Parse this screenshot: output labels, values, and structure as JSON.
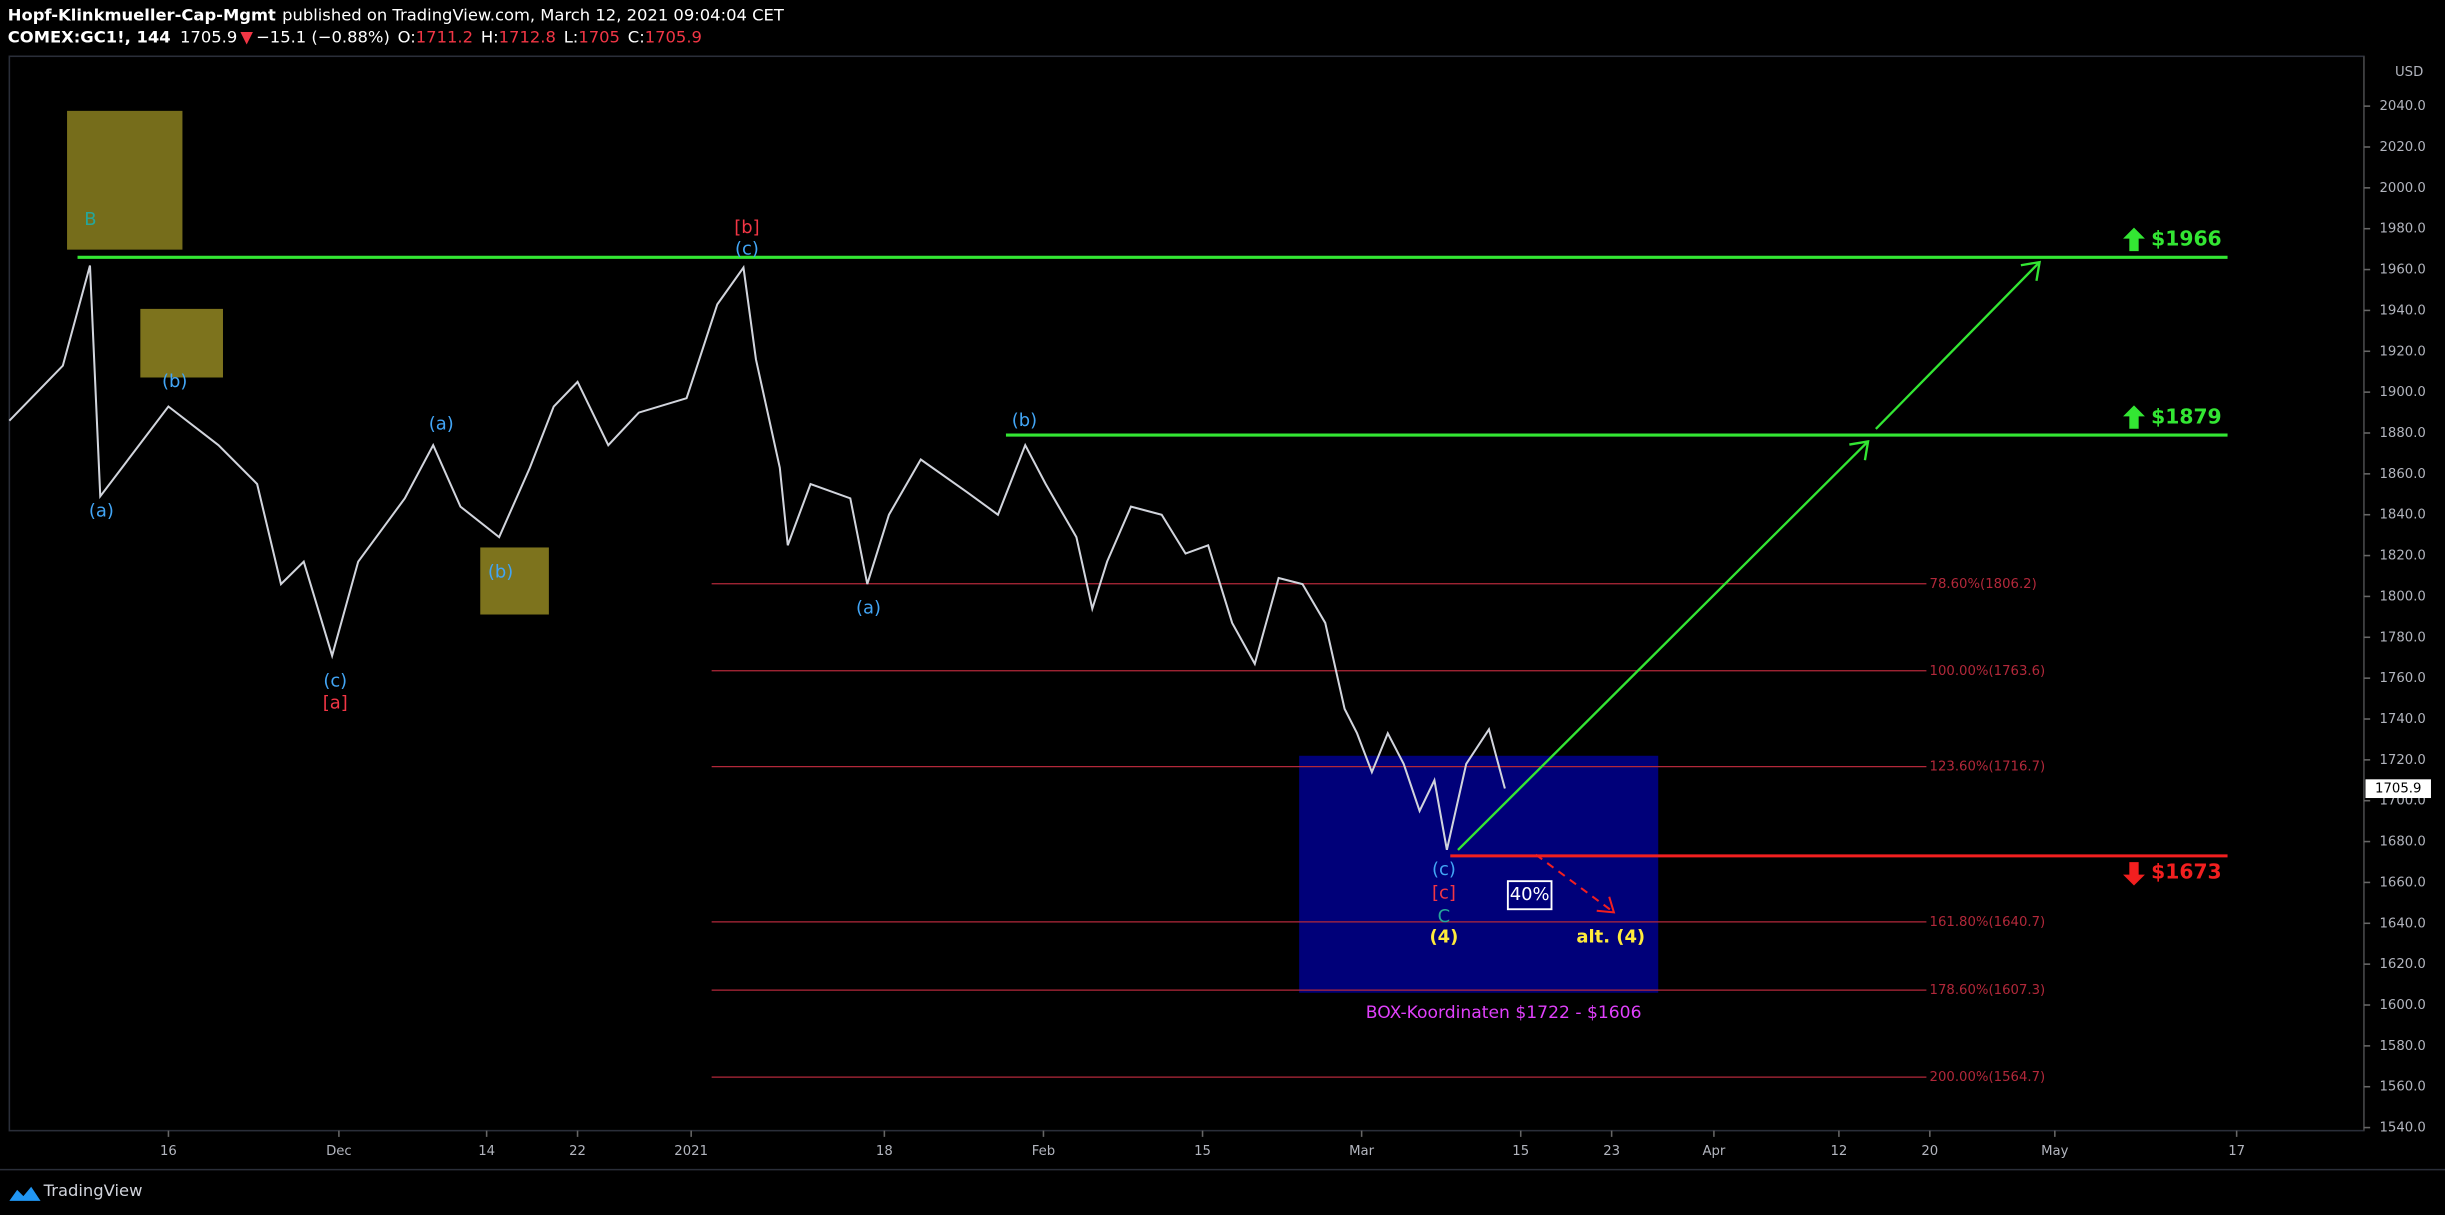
{
  "header": {
    "author": "Hopf-Klinkmueller-Cap-Mgmt",
    "published": "published on TradingView.com, March 12, 2021 09:04:04 CET",
    "symbol": "COMEX:GC1!, 144",
    "last": 1705.9,
    "arrow": "▼",
    "change": "−15.1 (−0.88%)",
    "ohlc": [
      {
        "label": "O:",
        "value": 1711.2
      },
      {
        "label": "H:",
        "value": 1712.8
      },
      {
        "label": "L:",
        "value": 1705.0
      },
      {
        "label": "C:",
        "value": 1705.9
      }
    ]
  },
  "chart_data": {
    "type": "line",
    "currency": "USD",
    "x": [
      1.0,
      5.7,
      8.1,
      9.0,
      15.0,
      19.4,
      22.8,
      24.9,
      26.9,
      29.4,
      31.7,
      35.8,
      38.3,
      40.7,
      44.1,
      46.8,
      48.9,
      51.0,
      53.7,
      56.4,
      60.6,
      63.3,
      65.6,
      66.7,
      68.8,
      69.5,
      71.5,
      75.0,
      76.5,
      78.4,
      81.2,
      85.3,
      88.0,
      90.4,
      92.2,
      94.9,
      96.3,
      97.6,
      99.7,
      102.4,
      104.5,
      106.5,
      108.6,
      110.6,
      112.7,
      114.8,
      116.8,
      118.5,
      119.6,
      120.9,
      122.3,
      123.7,
      125.1,
      126.4,
      127.5,
      129.2,
      131.2,
      132.6
    ],
    "series": [
      {
        "color": "#d1d4dc",
        "values": [
          1886,
          1913,
          1962,
          1849,
          1893,
          1874,
          1855,
          1806,
          1817,
          1771,
          1817,
          1848,
          1874,
          1844,
          1829,
          1863,
          1893,
          1905,
          1874,
          1890,
          1897,
          1943,
          1961,
          1916,
          1863,
          1825,
          1855,
          1848,
          1806,
          1840,
          1867,
          1851,
          1840,
          1874,
          1855,
          1829,
          1794,
          1817,
          1844,
          1840,
          1821,
          1825,
          1787,
          1767,
          1809,
          1806,
          1787,
          1745,
          1733,
          1714,
          1733,
          1718,
          1695,
          1710,
          1676,
          1718,
          1735,
          1706
        ]
      }
    ],
    "xlim": [
      1,
      208.2
    ],
    "xticks": [
      {
        "value": 15,
        "label": "16"
      },
      {
        "value": 30,
        "label": "Dec"
      },
      {
        "value": 43,
        "label": "14"
      },
      {
        "value": 51,
        "label": "22"
      },
      {
        "value": 61,
        "label": "2021"
      },
      {
        "value": 78,
        "label": "18"
      },
      {
        "value": 92,
        "label": "Feb"
      },
      {
        "value": 106,
        "label": "15"
      },
      {
        "value": 120,
        "label": "Mar"
      },
      {
        "value": 134,
        "label": "15"
      },
      {
        "value": 142,
        "label": "23"
      },
      {
        "value": 151,
        "label": "Apr"
      },
      {
        "value": 162,
        "label": "12"
      },
      {
        "value": 170,
        "label": "20"
      },
      {
        "value": 181,
        "label": "May"
      },
      {
        "value": 197,
        "label": "17"
      }
    ],
    "ylim": [
      1538.5,
      2064.4
    ],
    "yticks": [
      {
        "value": 1540,
        "label": "1540.0"
      },
      {
        "value": 1560,
        "label": "1560.0"
      },
      {
        "value": 1580,
        "label": "1580.0"
      },
      {
        "value": 1600,
        "label": "1600.0"
      },
      {
        "value": 1620,
        "label": "1620.0"
      },
      {
        "value": 1640,
        "label": "1640.0"
      },
      {
        "value": 1660,
        "label": "1660.0"
      },
      {
        "value": 1680,
        "label": "1680.0"
      },
      {
        "value": 1700,
        "label": "1700.0"
      },
      {
        "value": 1720,
        "label": "1720.0"
      },
      {
        "value": 1740,
        "label": "1740.0"
      },
      {
        "value": 1760,
        "label": "1760.0"
      },
      {
        "value": 1780,
        "label": "1780.0"
      },
      {
        "value": 1800,
        "label": "1800.0"
      },
      {
        "value": 1820,
        "label": "1820.0"
      },
      {
        "value": 1840,
        "label": "1840.0"
      },
      {
        "value": 1860,
        "label": "1860.0"
      },
      {
        "value": 1880,
        "label": "1880.0"
      },
      {
        "value": 1900,
        "label": "1900.0"
      },
      {
        "value": 1920,
        "label": "1920.0"
      },
      {
        "value": 1940,
        "label": "1940.0"
      },
      {
        "value": 1960,
        "label": "1960.0"
      },
      {
        "value": 1980,
        "label": "1980.0"
      },
      {
        "value": 2000,
        "label": "2000.0"
      },
      {
        "value": 2020,
        "label": "2020.0"
      },
      {
        "value": 2040,
        "label": "2040.0"
      }
    ],
    "last_price": 1705.9,
    "box": {
      "x": [
        114.5,
        146.1
      ],
      "range": [
        1606,
        1722
      ],
      "color": "#000080",
      "label": "BOX-Koordinaten $1722 - $1606"
    },
    "fib": {
      "x": [
        62.8,
        169.7
      ],
      "color": "#b2283a",
      "levels": [
        {
          "value": 1806.2,
          "label": "78.60%(1806.2)"
        },
        {
          "value": 1763.6,
          "label": "100.00%(1763.6)"
        },
        {
          "value": 1716.7,
          "label": "123.60%(1716.7)"
        },
        {
          "value": 1640.7,
          "label": "161.80%(1640.7)"
        },
        {
          "value": 1607.3,
          "label": "178.60%(1607.3)"
        },
        {
          "value": 1564.7,
          "label": "200.00%(1564.7)"
        }
      ]
    },
    "levels": [
      {
        "value": 1966,
        "label": "$1966",
        "color": "#33e633",
        "direction": "up",
        "x0": 7.0,
        "x1": 196.2
      },
      {
        "value": 1879,
        "label": "$1879",
        "color": "#33e633",
        "direction": "up",
        "x0": 88.7,
        "x1": 196.2
      },
      {
        "value": 1673,
        "label": "$1673",
        "color": "#f21f1f",
        "direction": "down",
        "x0": 127.8,
        "x1": 196.2
      }
    ],
    "annotations": [
      {
        "text": "B",
        "color": "#26a69a"
      },
      {
        "text": "(a)",
        "color": "#42a5f5"
      },
      {
        "text": "(b)",
        "color": "#42a5f5"
      },
      {
        "text": "(c)",
        "color": "#42a5f5"
      },
      {
        "text": "[a]",
        "color": "#f23645"
      },
      {
        "text": "(a)",
        "color": "#42a5f5"
      },
      {
        "text": "(b)",
        "color": "#42a5f5"
      },
      {
        "text": "[b]",
        "color": "#f23645"
      },
      {
        "text": "(c)",
        "color": "#42a5f5"
      },
      {
        "text": "(a)",
        "color": "#42a5f5"
      },
      {
        "text": "(b)",
        "color": "#42a5f5"
      },
      {
        "text": "(c)",
        "color": "#42a5f5"
      },
      {
        "text": "[c]",
        "color": "#f23645"
      },
      {
        "text": "C",
        "color": "#26a69a"
      },
      {
        "text": "(4)",
        "color": "#ffeb3b"
      },
      {
        "text": "alt. (4)",
        "color": "#ffeb3b"
      },
      {
        "text": "40%",
        "color": "#ffffff"
      }
    ]
  },
  "footer": {
    "brand": "TradingView"
  }
}
